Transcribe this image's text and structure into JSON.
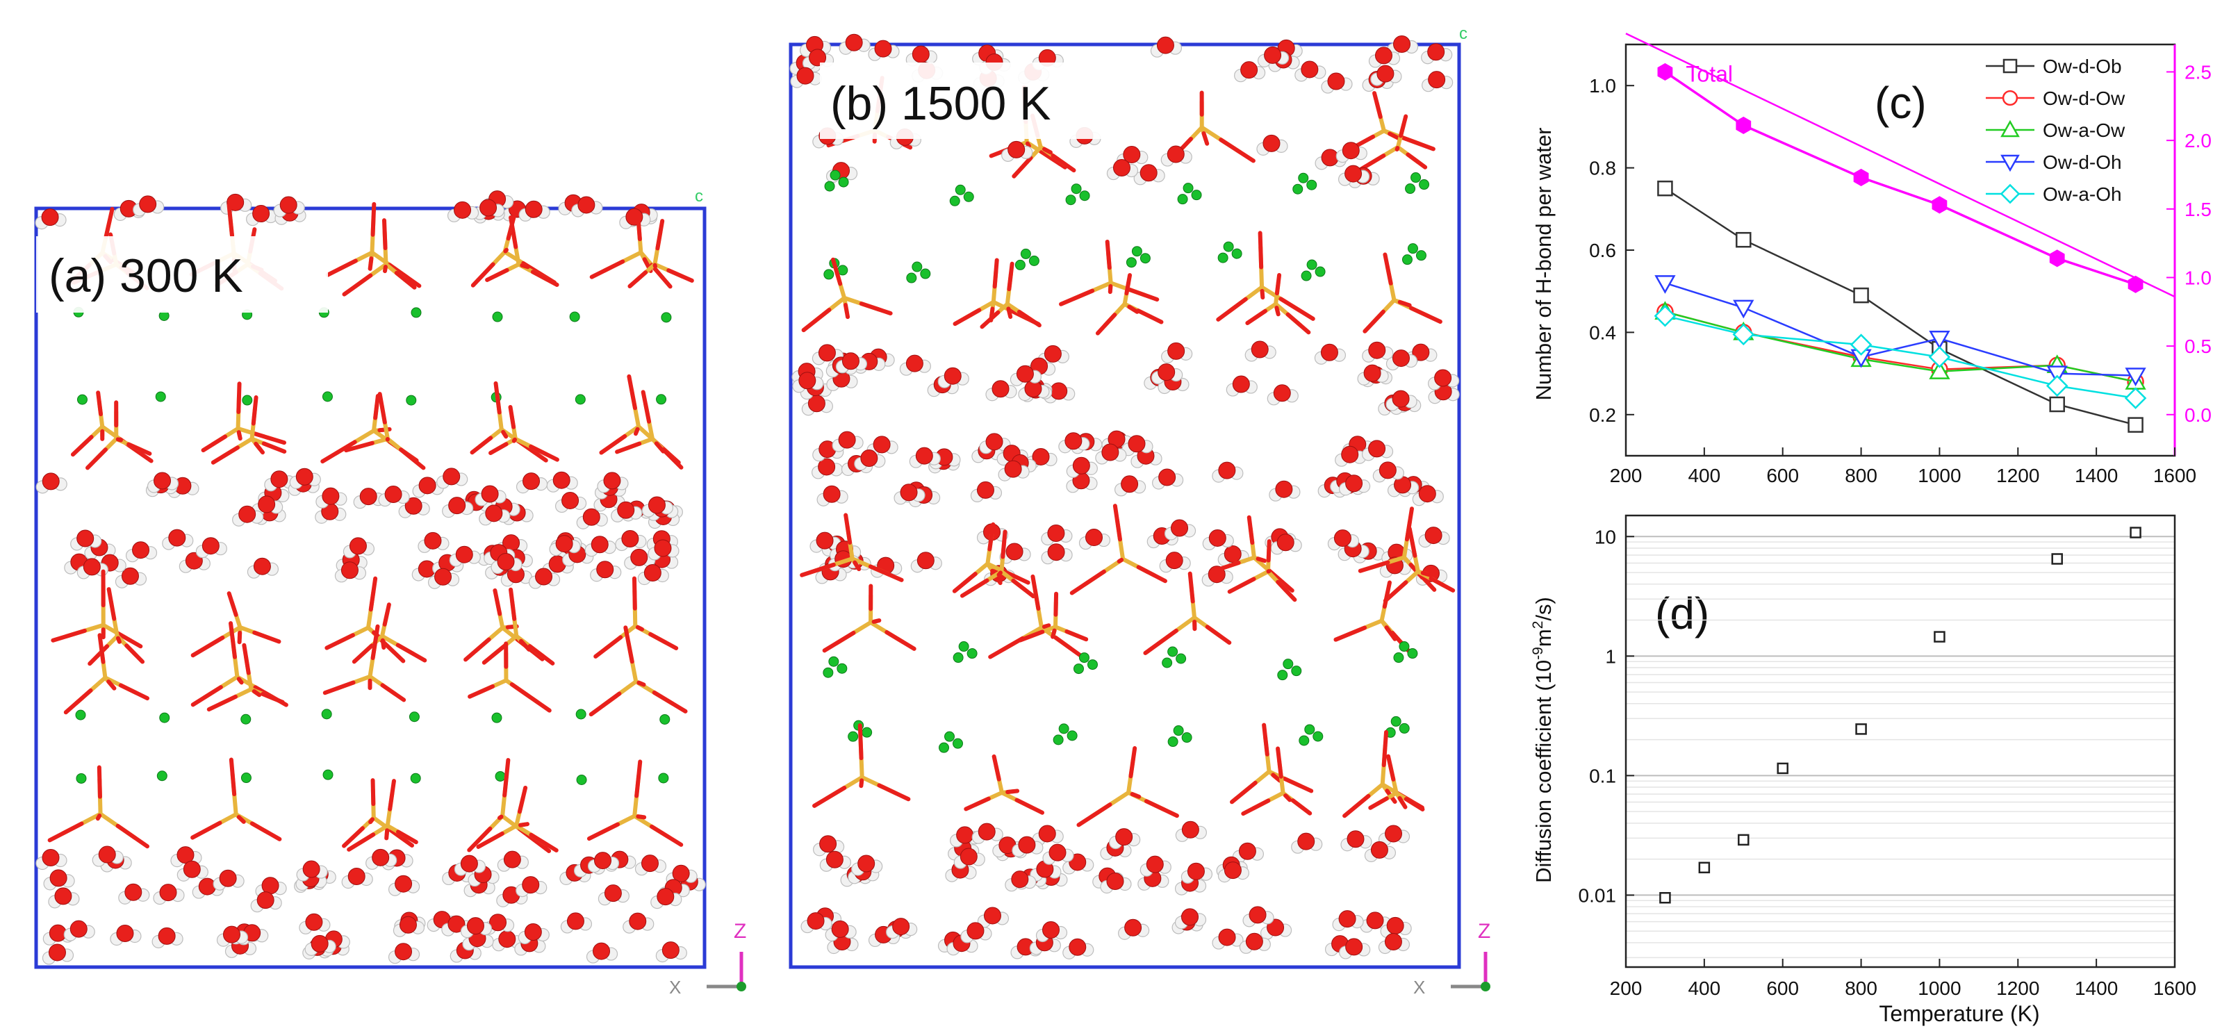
{
  "panels": {
    "a": {
      "label": "(a) 300 K",
      "axis_letters": {
        "c": "c",
        "z": "Z",
        "x": "X"
      }
    },
    "b": {
      "label": "(b) 1500 K",
      "axis_letters": {
        "c": "c",
        "z": "Z",
        "x": "X"
      }
    }
  },
  "colors": {
    "cell_box": "#2b3bd6",
    "oxygen": "#e8201c",
    "hydrogen": "#f1f1f1",
    "silicon": "#e8b43c",
    "aluminum": "#e070d0",
    "ion": "#19c02c",
    "axis_black": "#222222",
    "total": "#ff00ff",
    "ow_d_ob": "#333333",
    "ow_d_ow": "#ff2a2a",
    "ow_a_ow": "#22cc22",
    "ow_d_oh": "#2a3cff",
    "ow_a_oh": "#00e0e0"
  },
  "chart_data": [
    {
      "panel": "(c)",
      "type": "line",
      "ylabel": "Number of H-bond per water",
      "xlim": [
        200,
        1600
      ],
      "ylim": [
        0.1,
        1.1
      ],
      "xticks": [
        200,
        400,
        600,
        800,
        1000,
        1200,
        1400,
        1600
      ],
      "yticks": [
        0.2,
        0.4,
        0.6,
        0.8,
        1.0
      ],
      "y2lim": [
        -0.3,
        2.7
      ],
      "y2ticks": [
        0.0,
        0.5,
        1.0,
        1.5,
        2.0,
        2.5
      ],
      "series": [
        {
          "name": "Ow-d-Ob",
          "marker": "square",
          "color": "#333333",
          "x": [
            300,
            500,
            800,
            1000,
            1300,
            1500
          ],
          "y": [
            0.75,
            0.625,
            0.49,
            0.36,
            0.225,
            0.175
          ]
        },
        {
          "name": "Ow-d-Ow",
          "marker": "circle",
          "color": "#ff2a2a",
          "x": [
            300,
            500,
            800,
            1000,
            1300,
            1500
          ],
          "y": [
            0.45,
            0.4,
            0.34,
            0.31,
            0.32,
            0.28
          ]
        },
        {
          "name": "Ow-a-Ow",
          "marker": "triangle-up",
          "color": "#22cc22",
          "x": [
            300,
            500,
            800,
            1000,
            1300,
            1500
          ],
          "y": [
            0.45,
            0.4,
            0.335,
            0.305,
            0.32,
            0.28
          ]
        },
        {
          "name": "Ow-d-Oh",
          "marker": "triangle-down",
          "color": "#2a3cff",
          "x": [
            300,
            500,
            800,
            1000,
            1300,
            1500
          ],
          "y": [
            0.52,
            0.46,
            0.34,
            0.385,
            0.3,
            0.295
          ]
        },
        {
          "name": "Ow-a-Oh",
          "marker": "diamond",
          "color": "#00e0e0",
          "x": [
            300,
            500,
            800,
            1000,
            1300,
            1500
          ],
          "y": [
            0.44,
            0.395,
            0.37,
            0.34,
            0.27,
            0.24
          ]
        }
      ],
      "total": {
        "name": "Total",
        "axis": "right",
        "color": "#ff00ff",
        "x": [
          300,
          500,
          800,
          1000,
          1300,
          1500
        ],
        "y": [
          2.5,
          2.11,
          1.73,
          1.53,
          1.14,
          0.95
        ],
        "fit": {
          "x": [
            200,
            1600
          ],
          "y": [
            2.78,
            0.86
          ]
        }
      },
      "legend": "top-right"
    },
    {
      "panel": "(d)",
      "type": "scatter",
      "xlabel": "Temperature (K)",
      "ylabel": "Diffusion coefficient (10",
      "ylabel_sup1": "-9",
      "ylabel_mid": "m",
      "ylabel_sup2": "2",
      "ylabel_end": "/s)",
      "xlim": [
        200,
        1600
      ],
      "xticks": [
        200,
        400,
        600,
        800,
        1000,
        1200,
        1400,
        1600
      ],
      "ylog": true,
      "ylim": [
        0.0025,
        15
      ],
      "yticks": [
        0.01,
        0.1,
        1,
        10
      ],
      "ytick_labels": [
        "0.01",
        "0.1",
        "1",
        "10"
      ],
      "grid": "horizontal",
      "points": {
        "x": [
          300,
          400,
          500,
          600,
          800,
          1000,
          1300,
          1500
        ],
        "y": [
          0.0095,
          0.017,
          0.029,
          0.115,
          0.245,
          1.45,
          6.5,
          10.8
        ]
      }
    }
  ]
}
